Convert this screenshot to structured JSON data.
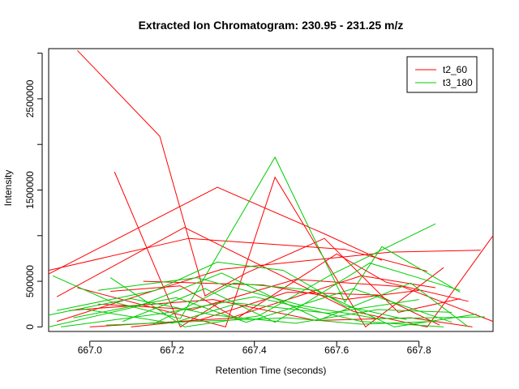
{
  "chart_data": {
    "type": "line",
    "title": "Extracted Ion Chromatogram: 230.95 - 231.25 m/z",
    "xlabel": "Retention Time (seconds)",
    "ylabel": "Intensity",
    "xlim": [
      666.9,
      667.98
    ],
    "ylim": [
      -50000,
      3050000
    ],
    "x_ticks": [
      667.0,
      667.2,
      667.4,
      667.6,
      667.8
    ],
    "x_tick_labels": [
      "667.0",
      "667.2",
      "667.4",
      "667.6",
      "667.8"
    ],
    "y_ticks": [
      0,
      500000,
      1000000,
      1500000,
      2000000,
      2500000,
      3000000
    ],
    "y_tick_labels": [
      "0",
      "500000",
      "",
      "1500000",
      "",
      "2500000",
      ""
    ],
    "legend": {
      "position": "top-right"
    },
    "grid": false,
    "series": [
      {
        "name": "t2_60",
        "color": "#ff0000",
        "lines": [
          [
            [
              666.97,
              3030000
            ],
            [
              667.17,
              2090000
            ],
            [
              667.28,
              340000
            ],
            [
              667.38,
              590000
            ],
            [
              667.57,
              970000
            ],
            [
              667.75,
              160000
            ],
            [
              667.9,
              310000
            ]
          ],
          [
            [
              667.06,
              1700000
            ],
            [
              667.22,
              0
            ],
            [
              667.32,
              280000
            ]
          ],
          [
            [
              666.9,
              580000
            ],
            [
              667.31,
              1530000
            ],
            [
              667.57,
              1020000
            ],
            [
              667.71,
              730000
            ]
          ],
          [
            [
              666.92,
              330000
            ],
            [
              667.23,
              1090000
            ],
            [
              667.64,
              170000
            ],
            [
              667.82,
              0
            ],
            [
              667.98,
              1000000
            ]
          ],
          [
            [
              666.9,
              620000
            ],
            [
              667.24,
              970000
            ],
            [
              667.62,
              850000
            ],
            [
              667.82,
              610000
            ]
          ],
          [
            [
              666.97,
              430000
            ],
            [
              667.33,
              0
            ],
            [
              667.45,
              1640000
            ],
            [
              667.67,
              0
            ],
            [
              667.86,
              650000
            ]
          ],
          [
            [
              667.0,
              0
            ],
            [
              667.36,
              100000
            ],
            [
              667.6,
              800000
            ],
            [
              667.72,
              490000
            ],
            [
              667.92,
              280000
            ]
          ],
          [
            [
              666.92,
              60000
            ],
            [
              667.32,
              630000
            ],
            [
              667.73,
              820000
            ],
            [
              667.95,
              840000
            ]
          ],
          [
            [
              667.05,
              390000
            ],
            [
              667.22,
              450000
            ],
            [
              667.35,
              110000
            ],
            [
              667.66,
              560000
            ],
            [
              667.84,
              430000
            ]
          ],
          [
            [
              666.95,
              180000
            ],
            [
              667.3,
              300000
            ],
            [
              667.55,
              70000
            ],
            [
              667.78,
              100000
            ],
            [
              667.93,
              0
            ]
          ],
          [
            [
              667.1,
              0
            ],
            [
              667.27,
              80000
            ],
            [
              667.48,
              380000
            ],
            [
              667.7,
              350000
            ],
            [
              667.85,
              20000
            ]
          ],
          [
            [
              667.02,
              250000
            ],
            [
              667.25,
              190000
            ],
            [
              667.5,
              520000
            ],
            [
              667.76,
              440000
            ],
            [
              667.98,
              60000
            ]
          ],
          [
            [
              667.13,
              500000
            ],
            [
              667.42,
              460000
            ],
            [
              667.62,
              300000
            ],
            [
              667.8,
              400000
            ]
          ]
        ]
      },
      {
        "name": "t3_180",
        "color": "#00cc00",
        "lines": [
          [
            [
              666.91,
              560000
            ],
            [
              667.05,
              280000
            ],
            [
              667.22,
              90000
            ],
            [
              667.45,
              1860000
            ],
            [
              667.62,
              270000
            ],
            [
              667.71,
              880000
            ],
            [
              667.9,
              380000
            ]
          ],
          [
            [
              666.92,
              180000
            ],
            [
              667.16,
              400000
            ],
            [
              667.31,
              710000
            ],
            [
              667.47,
              620000
            ],
            [
              667.62,
              230000
            ],
            [
              667.77,
              80000
            ]
          ],
          [
            [
              666.9,
              0
            ],
            [
              667.12,
              230000
            ],
            [
              667.32,
              590000
            ],
            [
              667.56,
              80000
            ],
            [
              667.78,
              480000
            ],
            [
              667.92,
              0
            ]
          ],
          [
            [
              667.05,
              540000
            ],
            [
              667.23,
              0
            ],
            [
              667.41,
              120000
            ],
            [
              667.59,
              580000
            ],
            [
              667.84,
              1130000
            ]
          ],
          [
            [
              666.96,
              100000
            ],
            [
              667.21,
              320000
            ],
            [
              667.38,
              50000
            ],
            [
              667.64,
              420000
            ],
            [
              667.88,
              50000
            ]
          ],
          [
            [
              667.02,
              400000
            ],
            [
              667.26,
              540000
            ],
            [
              667.52,
              230000
            ],
            [
              667.7,
              90000
            ],
            [
              667.96,
              110000
            ]
          ],
          [
            [
              666.93,
              0
            ],
            [
              667.18,
              150000
            ],
            [
              667.4,
              330000
            ],
            [
              667.66,
              60000
            ],
            [
              667.86,
              0
            ]
          ],
          [
            [
              667.08,
              60000
            ],
            [
              667.28,
              420000
            ],
            [
              667.45,
              50000
            ],
            [
              667.68,
              700000
            ],
            [
              667.9,
              400000
            ]
          ],
          [
            [
              666.98,
              200000
            ],
            [
              667.2,
              40000
            ],
            [
              667.36,
              260000
            ],
            [
              667.58,
              150000
            ],
            [
              667.8,
              300000
            ]
          ],
          [
            [
              667.15,
              20000
            ],
            [
              667.35,
              480000
            ],
            [
              667.55,
              400000
            ],
            [
              667.74,
              0
            ],
            [
              667.94,
              140000
            ]
          ],
          [
            [
              666.9,
              130000
            ],
            [
              667.1,
              310000
            ],
            [
              667.3,
              130000
            ],
            [
              667.5,
              40000
            ],
            [
              667.7,
              190000
            ],
            [
              667.88,
              160000
            ]
          ],
          [
            [
              667.04,
              20000
            ],
            [
              667.26,
              60000
            ],
            [
              667.48,
              100000
            ],
            [
              667.66,
              30000
            ],
            [
              667.84,
              60000
            ]
          ]
        ]
      }
    ]
  }
}
